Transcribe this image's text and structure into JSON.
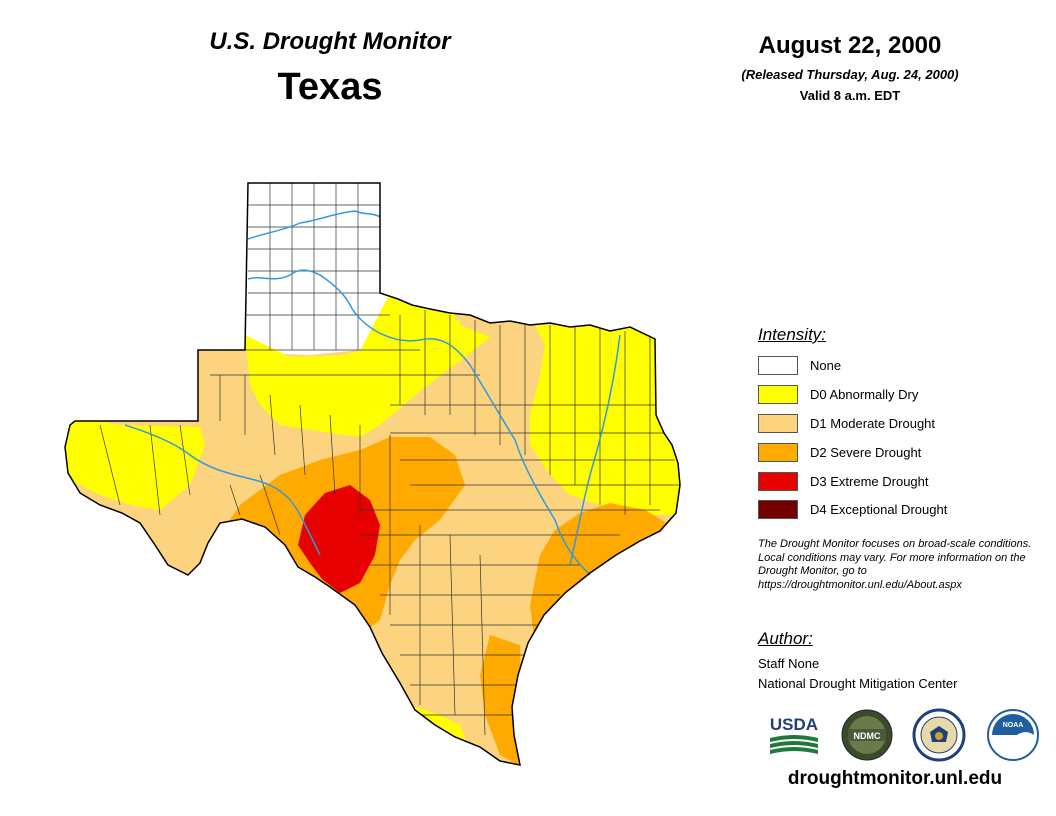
{
  "header": {
    "subtitle": "U.S. Drought Monitor",
    "title": "Texas",
    "date": "August 22, 2000",
    "released": "(Released Thursday, Aug. 24, 2000)",
    "valid": "Valid 8 a.m. EDT"
  },
  "legend": {
    "title": "Intensity:",
    "items": [
      {
        "label": "None",
        "color": "#ffffff"
      },
      {
        "label": "D0 Abnormally Dry",
        "color": "#ffff00"
      },
      {
        "label": "D1 Moderate Drought",
        "color": "#fcd37f"
      },
      {
        "label": "D2 Severe Drought",
        "color": "#ffaa00"
      },
      {
        "label": "D3 Extreme Drought",
        "color": "#e60000"
      },
      {
        "label": "D4 Exceptional Drought",
        "color": "#730000"
      }
    ]
  },
  "note": "The Drought Monitor focuses on broad-scale conditions. Local conditions may vary. For more information on the Drought Monitor, go to https://droughtmonitor.unl.edu/About.aspx",
  "author": {
    "title": "Author:",
    "name": "Staff None",
    "org": "National Drought Mitigation Center"
  },
  "logos": [
    {
      "name": "usda-logo",
      "text": "USDA"
    },
    {
      "name": "ndmc-logo",
      "text": "NDMC"
    },
    {
      "name": "commerce-logo",
      "text": ""
    },
    {
      "name": "noaa-logo",
      "text": "NOAA"
    }
  ],
  "url": "droughtmonitor.unl.edu",
  "colors": {
    "river": "#3399dd",
    "county_line": "#333333",
    "state_outline": "#000000"
  }
}
